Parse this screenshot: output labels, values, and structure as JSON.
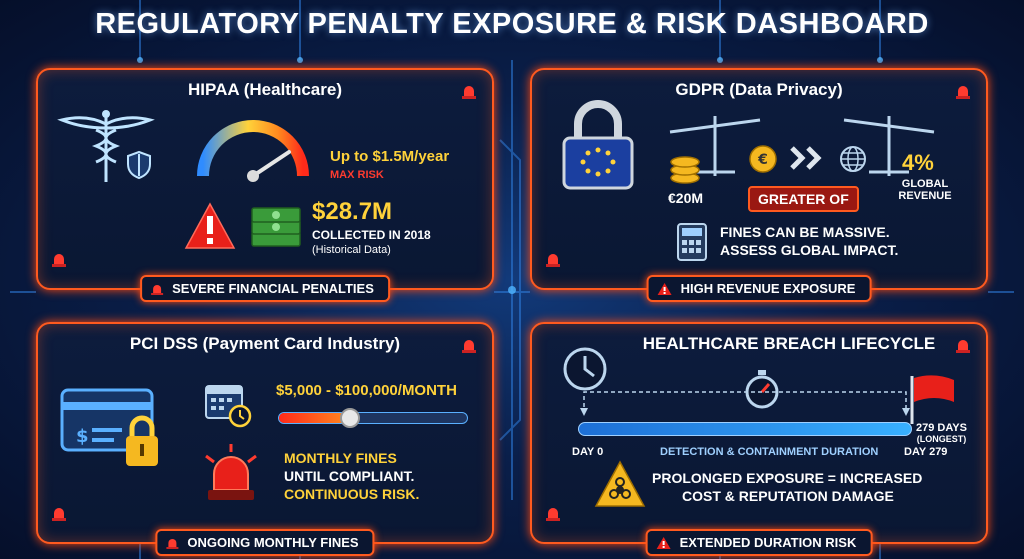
{
  "title": "REGULATORY PENALTY EXPOSURE & RISK DASHBOARD",
  "hipaa": {
    "title": "HIPAA (Healthcare)",
    "max_label": "Up to $1.5M/year",
    "max_risk": "MAX RISK",
    "amount": "$28.7M",
    "collected": "COLLECTED IN 2018",
    "historical": "(Historical Data)",
    "footer": "SEVERE FINANCIAL PENALTIES"
  },
  "gdpr": {
    "title": "GDPR (Data Privacy)",
    "fixed": "€20M",
    "greater_of": "GREATER OF",
    "percent": "4%",
    "global_revenue_1": "GLOBAL",
    "global_revenue_2": "REVENUE",
    "note_1": "FINES CAN BE MASSIVE.",
    "note_2": "ASSESS GLOBAL IMPACT.",
    "footer": "HIGH REVENUE EXPOSURE"
  },
  "pci": {
    "title": "PCI DSS (Payment Card Industry)",
    "range": "$5,000 - $100,000/MONTH",
    "slider_level": 0.38,
    "note_1": "MONTHLY FINES",
    "note_2": "UNTIL COMPLIANT.",
    "note_3": "CONTINUOUS RISK.",
    "footer": "ONGOING MONTHLY FINES"
  },
  "breach": {
    "title": "HEALTHCARE BREACH LIFECYCLE",
    "days_label_1": "279 DAYS",
    "days_label_2": "(LONGEST)",
    "day0": "DAY 0",
    "duration": "DETECTION & CONTAINMENT DURATION",
    "day279": "DAY 279",
    "note_1": "PROLONGED EXPOSURE = INCREASED",
    "note_2": "COST & REPUTATION DAMAGE",
    "footer": "EXTENDED DURATION RISK"
  },
  "colors": {
    "accent": "#ff5a1f",
    "yellow": "#ffd23a",
    "red": "#ff3b2f",
    "blue": "#3fa9f5"
  }
}
